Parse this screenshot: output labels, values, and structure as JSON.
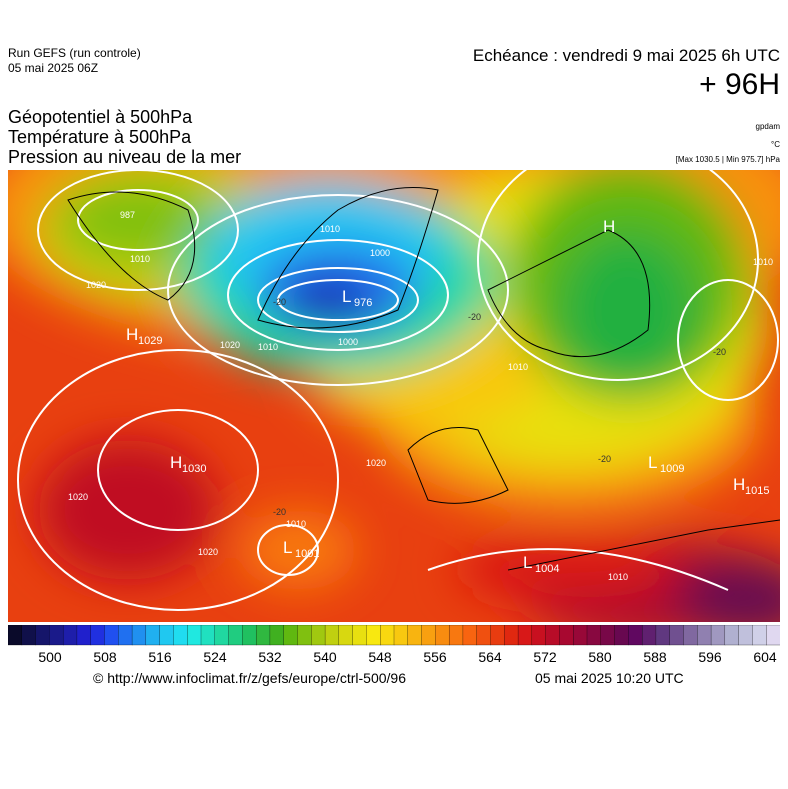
{
  "header": {
    "run": "Run GEFS (run controle)",
    "run_date": "05 mai 2025 06Z",
    "echeance": "Echéance : vendredi 9 mai 2025 6h UTC",
    "lead": "+ 96H",
    "titles": [
      "Géopotentiel à 500hPa",
      "Température à 500hPa",
      "Pression au niveau de la mer"
    ],
    "units": [
      "gpdam",
      "°C",
      "[Max 1030.5 | Min 975.7] hPa"
    ]
  },
  "map": {
    "centers": [
      {
        "symbol": "H",
        "value": "1029"
      },
      {
        "symbol": "H",
        "value": "1030"
      },
      {
        "symbol": "L",
        "value": "976"
      },
      {
        "symbol": "L",
        "value": "1001"
      },
      {
        "symbol": "L",
        "value": "1004"
      },
      {
        "symbol": "L",
        "value": "1009"
      },
      {
        "symbol": "H",
        "value": "1015"
      },
      {
        "symbol": "H",
        "value": ""
      }
    ],
    "isobar_labels": [
      "987",
      "1010",
      "1020",
      "1010",
      "1000",
      "1010",
      "1000",
      "1020",
      "1020",
      "1020",
      "1020",
      "1010",
      "1010",
      "1010",
      "1010"
    ],
    "temperature_labels": [
      "-20",
      "-20",
      "-20",
      "-20",
      "-20"
    ]
  },
  "colorbar": {
    "colors": [
      "#0a0a2a",
      "#10104a",
      "#15156a",
      "#1a1a8a",
      "#1e1eaa",
      "#2020cc",
      "#2030e0",
      "#2050f0",
      "#2070f0",
      "#2090f0",
      "#20b0f0",
      "#20c8f0",
      "#20dcf0",
      "#20e8e0",
      "#20e0c0",
      "#20d8a0",
      "#20cc80",
      "#20c060",
      "#30b840",
      "#40b020",
      "#60b810",
      "#80c010",
      "#a0c810",
      "#c0d010",
      "#d8d810",
      "#e8e010",
      "#f8e810",
      "#f8d810",
      "#f8c810",
      "#f8b410",
      "#f8a010",
      "#f88c10",
      "#f87810",
      "#f86410",
      "#f05010",
      "#e83c10",
      "#e02810",
      "#d81818",
      "#c81020",
      "#b80c28",
      "#a80830",
      "#980838",
      "#880840",
      "#780848",
      "#680850",
      "#600860",
      "#602070",
      "#603880",
      "#705090",
      "#8068a0",
      "#9080b0",
      "#a098c0",
      "#b0b0d0",
      "#c0c0dc",
      "#d0d0e8",
      "#e0d8f0"
    ],
    "ticks": [
      "500",
      "508",
      "516",
      "524",
      "532",
      "540",
      "548",
      "556",
      "564",
      "572",
      "580",
      "588",
      "596",
      "604"
    ]
  },
  "footer": {
    "url": "© http://www.infoclimat.fr/z/gefs/europe/ctrl-500/96",
    "time": "05 mai 2025 10:20 UTC"
  }
}
